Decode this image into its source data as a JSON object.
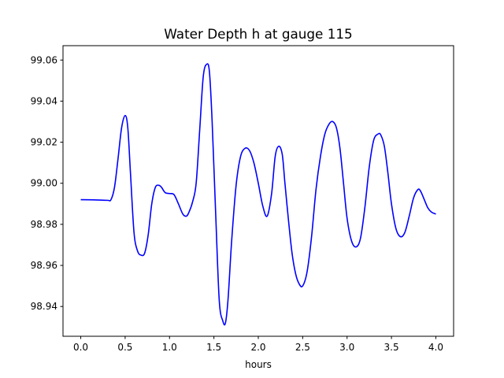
{
  "chart_data": {
    "type": "line",
    "title": "Water Depth h at gauge 115",
    "xlabel": "hours",
    "ylabel": "",
    "xlim": [
      -0.2,
      4.2
    ],
    "ylim": [
      98.9255,
      99.067
    ],
    "xticks": [
      0.0,
      0.5,
      1.0,
      1.5,
      2.0,
      2.5,
      3.0,
      3.5,
      4.0
    ],
    "xtick_labels": [
      "0.0",
      "0.5",
      "1.0",
      "1.5",
      "2.0",
      "2.5",
      "3.0",
      "3.5",
      "4.0"
    ],
    "yticks": [
      98.94,
      98.96,
      98.98,
      99.0,
      99.02,
      99.04,
      99.06
    ],
    "ytick_labels": [
      "98.94",
      "98.96",
      "98.98",
      "99.00",
      "99.02",
      "99.04",
      "99.06"
    ],
    "grid": false,
    "series": [
      {
        "color": "#0000ff",
        "x": [
          0.0,
          0.15,
          0.3,
          0.34,
          0.38,
          0.42,
          0.46,
          0.5,
          0.53,
          0.56,
          0.6,
          0.64,
          0.68,
          0.72,
          0.76,
          0.8,
          0.84,
          0.88,
          0.91,
          0.95,
          1.0,
          1.05,
          1.1,
          1.15,
          1.19,
          1.22,
          1.26,
          1.3,
          1.34,
          1.38,
          1.42,
          1.45,
          1.48,
          1.52,
          1.56,
          1.6,
          1.63,
          1.66,
          1.7,
          1.75,
          1.8,
          1.85,
          1.9,
          1.95,
          2.0,
          2.05,
          2.1,
          2.15,
          2.19,
          2.23,
          2.27,
          2.3,
          2.34,
          2.38,
          2.42,
          2.46,
          2.5,
          2.55,
          2.6,
          2.65,
          2.7,
          2.75,
          2.8,
          2.84,
          2.88,
          2.92,
          2.96,
          3.0,
          3.05,
          3.1,
          3.15,
          3.2,
          3.25,
          3.3,
          3.35,
          3.38,
          3.42,
          3.46,
          3.5,
          3.55,
          3.6,
          3.65,
          3.7,
          3.75,
          3.8,
          3.83,
          3.87,
          3.91,
          3.95,
          4.0
        ],
        "y": [
          98.992,
          98.9919,
          98.9917,
          98.992,
          98.998,
          99.012,
          99.027,
          99.033,
          99.027,
          99.005,
          98.976,
          98.967,
          98.965,
          98.966,
          98.975,
          98.99,
          98.998,
          98.999,
          98.998,
          98.9955,
          98.995,
          98.9945,
          98.99,
          98.985,
          98.984,
          98.986,
          98.991,
          99.0,
          99.026,
          99.052,
          99.058,
          99.054,
          99.03,
          98.985,
          98.943,
          98.933,
          98.932,
          98.944,
          98.972,
          98.999,
          99.013,
          99.017,
          99.016,
          99.01,
          99.0,
          98.989,
          98.984,
          98.995,
          99.013,
          99.018,
          99.014,
          99.0,
          98.982,
          98.966,
          98.956,
          98.951,
          98.95,
          98.957,
          98.974,
          98.997,
          99.013,
          99.024,
          99.029,
          99.03,
          99.027,
          99.017,
          99.0,
          98.983,
          98.972,
          98.969,
          98.973,
          98.988,
          99.008,
          99.021,
          99.024,
          99.0235,
          99.018,
          99.005,
          98.99,
          98.978,
          98.974,
          98.976,
          98.984,
          98.993,
          98.997,
          98.996,
          98.992,
          98.988,
          98.986,
          98.985
        ]
      }
    ]
  }
}
